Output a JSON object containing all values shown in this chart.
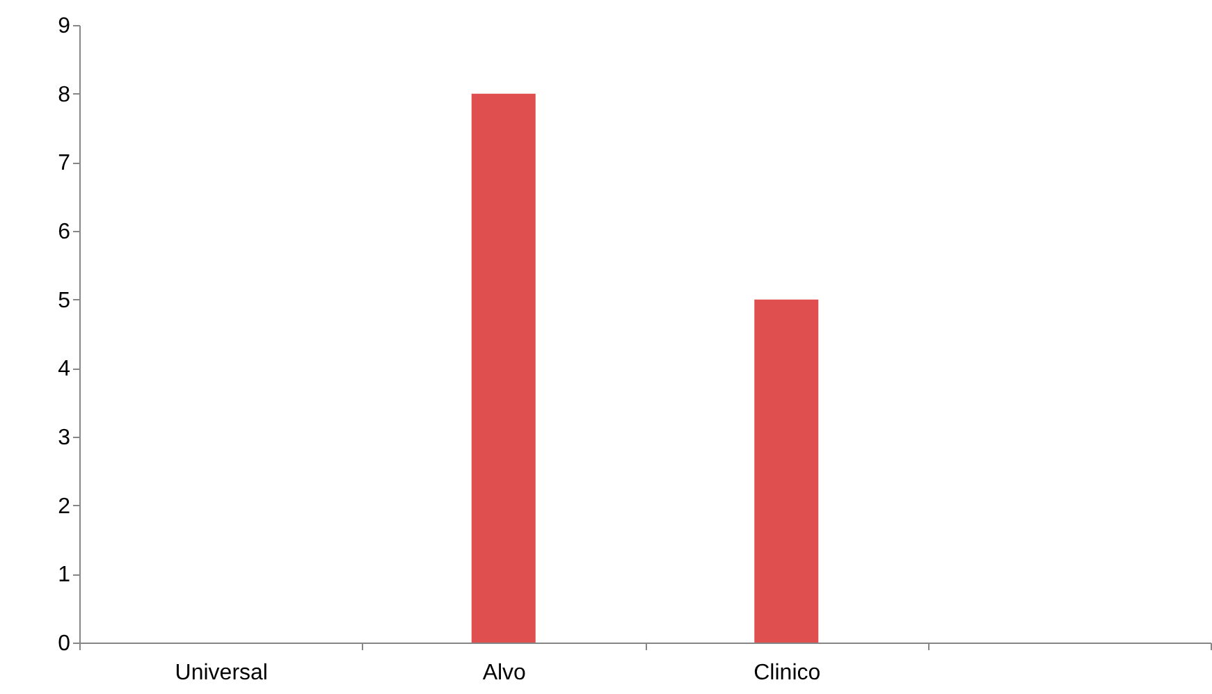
{
  "chart_data": {
    "type": "bar",
    "categories": [
      "Universal",
      "Alvo",
      "Clinico",
      null
    ],
    "values": [
      0,
      8,
      5,
      0
    ],
    "color": "#e04f4f",
    "ylim": [
      0,
      9
    ],
    "yticks": [
      0,
      1,
      2,
      3,
      4,
      5,
      6,
      7,
      8,
      9
    ],
    "grid": false
  }
}
